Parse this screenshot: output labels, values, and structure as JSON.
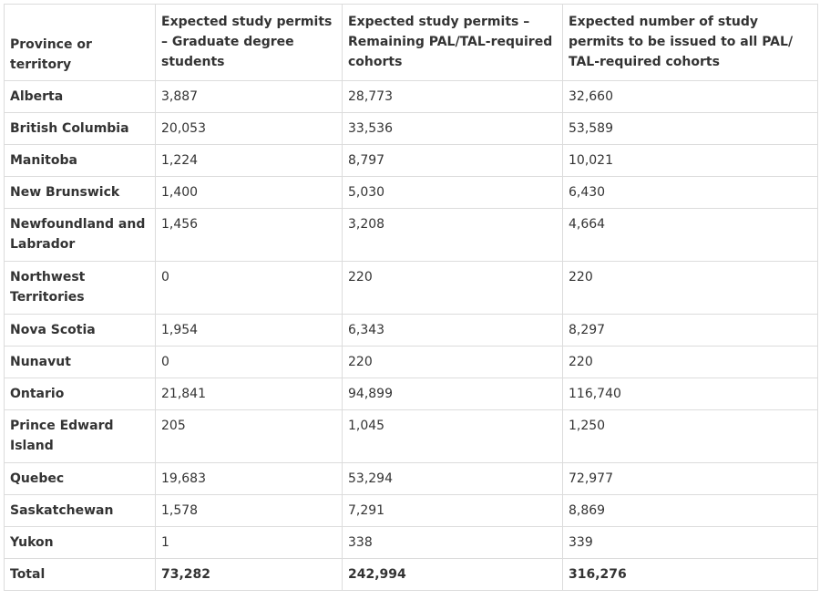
{
  "table": {
    "headers": [
      "Province or territory",
      "Expected study permits – Graduate degree students",
      "Expected study permits – Remaining PAL/TAL-required cohorts",
      "Expected number of study permits to be issued to all PAL/ TAL-required cohorts"
    ],
    "rows": [
      {
        "province": "Alberta",
        "graduate": "3,887",
        "remaining": "28,773",
        "total": "32,660"
      },
      {
        "province": "British Columbia",
        "graduate": "20,053",
        "remaining": "33,536",
        "total": "53,589"
      },
      {
        "province": "Manitoba",
        "graduate": "1,224",
        "remaining": "8,797",
        "total": "10,021"
      },
      {
        "province": "New Brunswick",
        "graduate": "1,400",
        "remaining": "5,030",
        "total": "6,430"
      },
      {
        "province": "Newfoundland and Labrador",
        "graduate": "1,456",
        "remaining": "3,208",
        "total": "4,664"
      },
      {
        "province": "Northwest Territories",
        "graduate": "0",
        "remaining": "220",
        "total": "220"
      },
      {
        "province": "Nova Scotia",
        "graduate": "1,954",
        "remaining": "6,343",
        "total": "8,297"
      },
      {
        "province": "Nunavut",
        "graduate": "0",
        "remaining": "220",
        "total": "220"
      },
      {
        "province": "Ontario",
        "graduate": "21,841",
        "remaining": "94,899",
        "total": "116,740"
      },
      {
        "province": "Prince Edward Island",
        "graduate": "205",
        "remaining": "1,045",
        "total": "1,250"
      },
      {
        "province": "Quebec",
        "graduate": "19,683",
        "remaining": "53,294",
        "total": "72,977"
      },
      {
        "province": "Saskatchewan",
        "graduate": "1,578",
        "remaining": "7,291",
        "total": "8,869"
      },
      {
        "province": "Yukon",
        "graduate": "1",
        "remaining": "338",
        "total": "339"
      }
    ],
    "total_row": {
      "province": "Total",
      "graduate": "73,282",
      "remaining": "242,994",
      "total": "316,276"
    }
  }
}
